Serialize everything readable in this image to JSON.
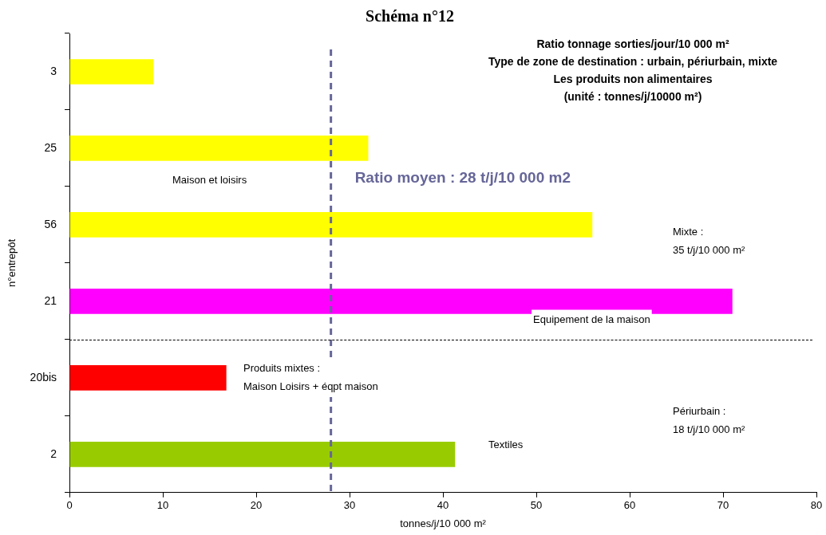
{
  "chart_data": {
    "type": "bar",
    "orientation": "horizontal",
    "title": "Schéma n°12",
    "subtitle": "Ratio tonnage sorties/jour/10 000 m²\nType de zone de destination : urbain, périurbain, mixte\nLes produits non alimentaires\n(unité : tonnes/j/10000 m²)",
    "categories": [
      "3",
      "25",
      "56",
      "21",
      "20bis",
      "2"
    ],
    "values": [
      9,
      32,
      56,
      71,
      16.8,
      41.3
    ],
    "colors": [
      "#ffff00",
      "#ffff00",
      "#ffff00",
      "#ff00ff",
      "#ff0000",
      "#99cc00"
    ],
    "xlim": [
      0,
      80
    ],
    "xticks": [
      0,
      10,
      20,
      30,
      40,
      50,
      60,
      70,
      80
    ],
    "xlabel": "tonnes/j/10 000 m²",
    "ylabel": "n°entrepôt",
    "grid": false,
    "legend": false,
    "ref_lines": [
      {
        "axis": "x",
        "value": 28,
        "label": "Ratio moyen : 28 t/j/10 000 m2",
        "color": "#666699",
        "line_style": "dashed"
      }
    ],
    "annotations": [
      "Maison et loisirs",
      "Mixte :\n35 t/j/10 000 m²",
      "Equipement de la maison",
      "Produits mixtes :\nMaison Loisirs + éqpt maison",
      "Périurbain :\n18 t/j/10 000 m²",
      "Textiles"
    ]
  }
}
